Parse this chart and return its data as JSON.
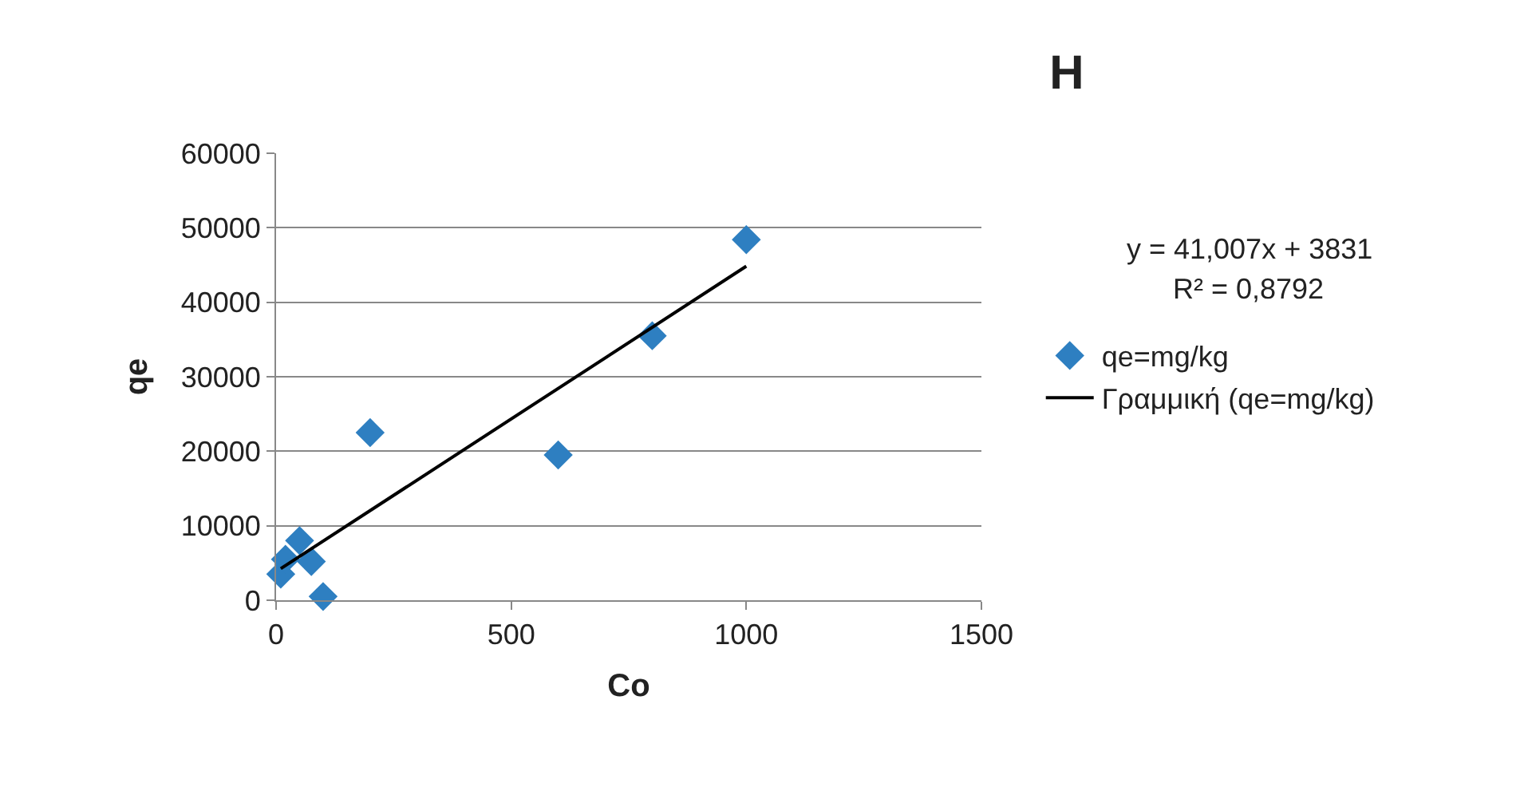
{
  "chart_data": {
    "type": "scatter",
    "title": "H",
    "xlabel": "Co",
    "ylabel": "qe",
    "xlim": [
      0,
      1500
    ],
    "xticks": [
      0,
      500,
      1000,
      1500
    ],
    "ylim": [
      0,
      60000
    ],
    "yticks": [
      0,
      10000,
      20000,
      30000,
      40000,
      50000,
      60000
    ],
    "grid": "y",
    "legend": "right",
    "marker": "diamond",
    "annotations": [
      "y = 41,007x + 3831",
      "R² = 0,8792"
    ],
    "series": [
      {
        "name": "qe=mg/kg",
        "color": "#2e7fc1",
        "x": [
          10,
          20,
          50,
          75,
          100,
          200,
          600,
          800,
          1000
        ],
        "values": [
          3500,
          5500,
          8000,
          5200,
          500,
          22500,
          19500,
          35500,
          48400
        ]
      },
      {
        "name": "Γραμμική (qe=mg/kg)",
        "type": "line",
        "color": "#000000",
        "line_style": "solid",
        "marker": "none",
        "x": [
          10,
          1000
        ],
        "values": [
          4241,
          44838
        ]
      }
    ]
  }
}
